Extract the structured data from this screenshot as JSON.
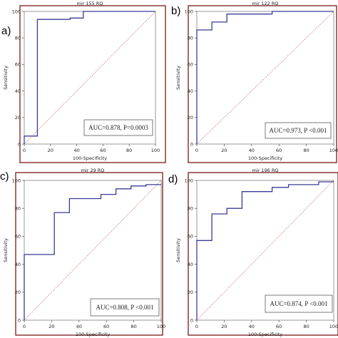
{
  "figure": {
    "line_color": "#3b3b98",
    "border_color": "#7a1a1a",
    "diagonal_color": "#c06060"
  },
  "chart_data": [
    {
      "type": "line",
      "panel_label": "a)",
      "title": "mir 155 RQ",
      "xlabel": "100-Specificity",
      "ylabel": "Sensitivity",
      "xlim": [
        0,
        100
      ],
      "ylim": [
        0,
        100
      ],
      "xticks": [
        "0",
        "20",
        "40",
        "60",
        "80",
        "100"
      ],
      "yticks": [
        "0",
        "20",
        "40",
        "60",
        "80",
        "100"
      ],
      "annotation": "AUC=0.878, P=0.0003",
      "series": [
        {
          "x": [
            0,
            0,
            10,
            10,
            35,
            35,
            45,
            45,
            100
          ],
          "y": [
            0,
            6,
            6,
            94,
            94,
            95,
            95,
            100,
            100
          ]
        }
      ]
    },
    {
      "type": "line",
      "panel_label": "b)",
      "title": "mir 122 RQ",
      "xlabel": "100-Specificity",
      "ylabel": "Sensitivity",
      "xlim": [
        0,
        100
      ],
      "ylim": [
        0,
        100
      ],
      "xticks": [
        "0",
        "20",
        "40",
        "60",
        "80",
        "100"
      ],
      "yticks": [
        "0",
        "20",
        "40",
        "60",
        "80",
        "100"
      ],
      "annotation": "AUC=0.973, P <0.001",
      "series": [
        {
          "x": [
            0,
            0,
            11,
            11,
            22,
            22,
            55,
            55,
            100
          ],
          "y": [
            0,
            86,
            86,
            92,
            92,
            98,
            98,
            100,
            100
          ]
        }
      ]
    },
    {
      "type": "line",
      "panel_label": "c)",
      "title": "mir 29 RQ",
      "xlabel": "100-Specificity",
      "ylabel": "Sensitivity",
      "xlim": [
        0,
        100
      ],
      "ylim": [
        0,
        100
      ],
      "xticks": [
        "0",
        "20",
        "40",
        "60",
        "80",
        "100"
      ],
      "yticks": [
        "0",
        "20",
        "40",
        "60",
        "80",
        "100"
      ],
      "annotation": "AUC=0.808, P <0.001",
      "series": [
        {
          "x": [
            0,
            0,
            22,
            22,
            33,
            33,
            56,
            56,
            67,
            67,
            78,
            78,
            89,
            89,
            100
          ],
          "y": [
            0,
            47,
            47,
            77,
            77,
            87,
            87,
            90,
            90,
            94,
            94,
            96,
            96,
            97,
            97
          ]
        }
      ]
    },
    {
      "type": "line",
      "panel_label": "d)",
      "title": "mir 196 RQ",
      "xlabel": "100-Specificity",
      "ylabel": "Sensitivity",
      "xlim": [
        0,
        100
      ],
      "ylim": [
        0,
        100
      ],
      "xticks": [
        "0",
        "20",
        "40",
        "60",
        "80",
        "100"
      ],
      "yticks": [
        "0",
        "20",
        "40",
        "60",
        "80",
        "100"
      ],
      "annotation": "AUC=0.874, P <0.001",
      "series": [
        {
          "x": [
            0,
            0,
            11,
            11,
            22,
            22,
            33,
            33,
            55,
            55,
            67,
            67,
            89,
            89,
            100
          ],
          "y": [
            0,
            57,
            57,
            76,
            76,
            80,
            80,
            92,
            92,
            95,
            95,
            97,
            97,
            99,
            99
          ]
        }
      ]
    }
  ]
}
